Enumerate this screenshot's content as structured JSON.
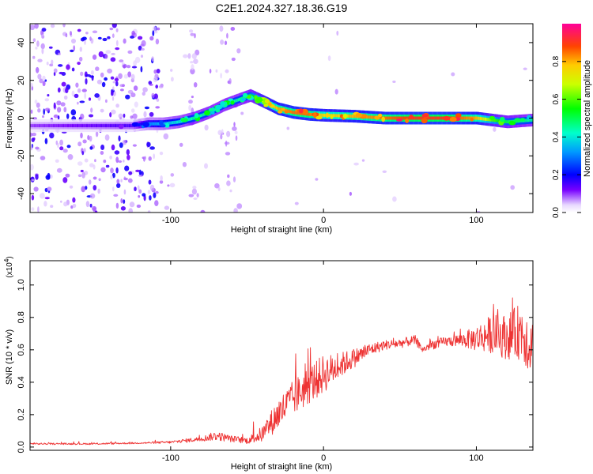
{
  "title": "C2E1.2024.327.18.36.G19",
  "chart_data": [
    {
      "type": "heatmap",
      "xlabel": "Height of straight line (km)",
      "ylabel": "Frequency (Hz)",
      "xlim": [
        -192,
        137
      ],
      "ylim": [
        -50,
        50
      ],
      "xticks": [
        -100,
        0,
        100
      ],
      "xtick_labels": [
        "-100",
        "0",
        "100"
      ],
      "yticks": [
        -40,
        -20,
        0,
        20,
        40
      ],
      "ytick_labels": [
        "-40",
        "-20",
        "0",
        "20",
        "40"
      ],
      "colorbar": {
        "label": "Normalized spectral amplitude",
        "range": [
          0,
          1
        ],
        "ticks": [
          0.0,
          0.2,
          0.4,
          0.6,
          0.8
        ],
        "tick_labels": [
          "0.0",
          "0.2",
          "0.4",
          "0.6",
          "0.8"
        ]
      },
      "ridge": {
        "name": "dominant frequency ridge",
        "x": [
          -192,
          -125,
          -115,
          -105,
          -95,
          -85,
          -75,
          -65,
          -55,
          -48,
          -40,
          -30,
          -20,
          -10,
          0,
          20,
          40,
          60,
          80,
          100,
          110,
          120,
          137
        ],
        "y": [
          -4,
          -4,
          -3,
          -3,
          -2,
          0,
          3,
          7,
          10,
          12,
          9,
          5,
          3,
          2,
          1.5,
          1,
          0,
          0,
          0,
          0,
          -1,
          -2,
          -1
        ],
        "amplitude": [
          0.1,
          0.15,
          0.3,
          0.35,
          0.4,
          0.45,
          0.45,
          0.45,
          0.45,
          0.5,
          0.7,
          0.8,
          0.85,
          0.85,
          0.75,
          0.8,
          0.85,
          0.9,
          0.9,
          0.8,
          0.6,
          0.5,
          0.45
        ]
      }
    },
    {
      "type": "line",
      "xlabel": "Height of straight line (km)",
      "ylabel": "SNR (10 * v/v)",
      "y_multiplier_label": "(x10",
      "y_multiplier_exp": "4",
      "y_multiplier_close": ")",
      "xlim": [
        -192,
        137
      ],
      "ylim": [
        -0.02,
        1.15
      ],
      "xticks": [
        -100,
        0,
        100
      ],
      "xtick_labels": [
        "-100",
        "0",
        "100"
      ],
      "yticks": [
        0.0,
        0.2,
        0.4,
        0.6,
        0.8,
        1.0
      ],
      "ytick_labels": [
        "0.0",
        "0.2",
        "0.4",
        "0.6",
        "0.8",
        "1.0"
      ],
      "color": "#ee3333",
      "series": [
        {
          "name": "SNR",
          "x": [
            -192,
            -150,
            -120,
            -100,
            -90,
            -80,
            -70,
            -60,
            -50,
            -40,
            -30,
            -20,
            -10,
            0,
            10,
            20,
            30,
            40,
            50,
            60,
            65,
            70,
            80,
            90,
            100,
            110,
            120,
            130,
            137
          ],
          "y": [
            0.02,
            0.02,
            0.025,
            0.03,
            0.04,
            0.05,
            0.07,
            0.05,
            0.04,
            0.08,
            0.2,
            0.3,
            0.38,
            0.45,
            0.5,
            0.55,
            0.6,
            0.63,
            0.64,
            0.66,
            0.6,
            0.63,
            0.65,
            0.66,
            0.67,
            0.7,
            0.68,
            0.72,
            0.6
          ],
          "noise": [
            0.005,
            0.005,
            0.005,
            0.008,
            0.012,
            0.015,
            0.03,
            0.02,
            0.02,
            0.05,
            0.1,
            0.11,
            0.12,
            0.12,
            0.08,
            0.06,
            0.04,
            0.03,
            0.03,
            0.03,
            0.02,
            0.03,
            0.03,
            0.04,
            0.08,
            0.12,
            0.14,
            0.18,
            0.2
          ]
        }
      ]
    }
  ]
}
